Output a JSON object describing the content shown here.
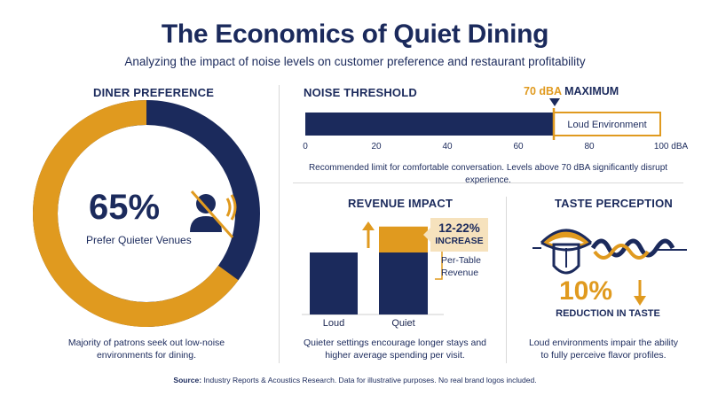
{
  "header": {
    "title": "The Economics of Quiet Dining",
    "subtitle": "Analyzing the impact of noise levels on customer preference and restaurant profitability"
  },
  "diner_preference": {
    "heading": "DINER PREFERENCE",
    "value_text": "65%",
    "value_label": "Prefer Quieter Venues",
    "caption_line1": "Majority of patrons seek out low-noise",
    "caption_line2": "environments for dining."
  },
  "noise_threshold": {
    "heading": "NOISE THRESHOLD",
    "marker_value": "70 dBA",
    "marker_suffix": "MAXIMUM",
    "loud_label": "Loud Environment",
    "ticks": [
      "0",
      "20",
      "40",
      "60",
      "80",
      "100 dBA"
    ],
    "caption": "Recommended limit for comfortable conversation. Levels above 70 dBA significantly disrupt experience."
  },
  "revenue_impact": {
    "heading": "REVENUE IMPACT",
    "increase_value": "12-22%",
    "increase_label": "INCREASE",
    "bracket_line1": "Per-Table",
    "bracket_line2": "Revenue",
    "caption_line1": "Quieter settings encourage longer stays and",
    "caption_line2": "higher average spending per visit."
  },
  "taste_perception": {
    "heading": "TASTE PERCEPTION",
    "value_text": "10%",
    "value_label": "REDUCTION IN TASTE",
    "caption_line1": "Loud environments impair the ability",
    "caption_line2": "to fully perceive flavor profiles."
  },
  "footer": {
    "source_label": "Source:",
    "source_text": "Industry Reports & Acoustics Research. Data for illustrative purposes. No real brand logos included."
  },
  "colors": {
    "navy": "#1b2a5c",
    "gold": "#e09a1f",
    "light_gold": "#f6e2bd",
    "white": "#ffffff"
  },
  "icons": [
    "person-quiet-icon",
    "arrow-up-icon",
    "arrow-down-icon",
    "mouth-tongue-icon",
    "sound-wave-icon",
    "marker-triangle-icon"
  ],
  "chart_data": [
    {
      "type": "pie",
      "title": "DINER PREFERENCE",
      "categories": [
        "Prefer Quieter Venues",
        "Other"
      ],
      "values": [
        65,
        35
      ]
    },
    {
      "type": "bar",
      "title": "NOISE THRESHOLD",
      "orientation": "horizontal",
      "xlim": [
        0,
        100
      ],
      "xticks": [
        0,
        20,
        40,
        60,
        80,
        100
      ],
      "xunit": "dBA",
      "values": [
        70
      ],
      "threshold": 70,
      "annotations": [
        "70 dBA MAXIMUM",
        "Loud Environment"
      ]
    },
    {
      "type": "bar",
      "title": "REVENUE IMPACT",
      "categories": [
        "Loud",
        "Quiet"
      ],
      "series": [
        {
          "values": [
            1.0,
            1.0
          ]
        },
        {
          "values": [
            0,
            0.22
          ]
        }
      ],
      "annotations": [
        "12-22% INCREASE",
        "Per-Table Revenue"
      ]
    }
  ]
}
